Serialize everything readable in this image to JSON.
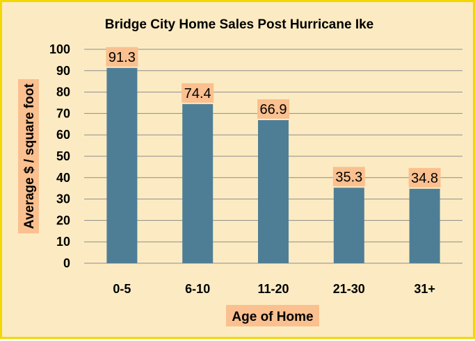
{
  "chart_data": {
    "type": "bar",
    "title": "Bridge City Home Sales Post Hurricane Ike",
    "xlabel": "Age of Home",
    "ylabel": "Average $ / square foot",
    "categories": [
      "0-5",
      "6-10",
      "11-20",
      "21-30",
      "31+"
    ],
    "values": [
      91.3,
      74.4,
      66.9,
      35.3,
      34.8
    ],
    "data_labels": [
      "91.3",
      "74.4",
      "66.9",
      "35.3",
      "34.8"
    ],
    "ylim": [
      0,
      100
    ],
    "yticks": [
      0,
      10,
      20,
      30,
      40,
      50,
      60,
      70,
      80,
      90,
      100
    ],
    "grid": true,
    "legend": "none",
    "colors": {
      "bar": "#4e7e96",
      "background": "#fcebc2",
      "border": "#f2d800",
      "label_box": "#fac08f",
      "grid": "#8c8c8c"
    }
  }
}
